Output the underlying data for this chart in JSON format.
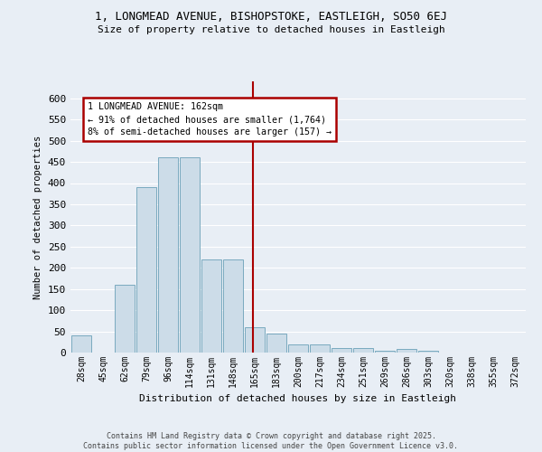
{
  "title_line1": "1, LONGMEAD AVENUE, BISHOPSTOKE, EASTLEIGH, SO50 6EJ",
  "title_line2": "Size of property relative to detached houses in Eastleigh",
  "xlabel": "Distribution of detached houses by size in Eastleigh",
  "ylabel": "Number of detached properties",
  "categories": [
    "28sqm",
    "45sqm",
    "62sqm",
    "79sqm",
    "96sqm",
    "114sqm",
    "131sqm",
    "148sqm",
    "165sqm",
    "183sqm",
    "200sqm",
    "217sqm",
    "234sqm",
    "251sqm",
    "269sqm",
    "286sqm",
    "303sqm",
    "320sqm",
    "338sqm",
    "355sqm",
    "372sqm"
  ],
  "values": [
    40,
    0,
    160,
    390,
    460,
    460,
    220,
    220,
    60,
    45,
    20,
    20,
    10,
    10,
    5,
    8,
    5,
    0,
    0,
    0,
    0
  ],
  "bar_color": "#ccdce8",
  "bar_edge_color": "#7aaabf",
  "bg_color": "#e8eef5",
  "grid_color": "#ffffff",
  "vline_color": "#aa0000",
  "annotation_text": "1 LONGMEAD AVENUE: 162sqm\n← 91% of detached houses are smaller (1,764)\n8% of semi-detached houses are larger (157) →",
  "annotation_box_edgecolor": "#aa0000",
  "footer_text": "Contains HM Land Registry data © Crown copyright and database right 2025.\nContains public sector information licensed under the Open Government Licence v3.0.",
  "ylim_max": 640,
  "yticks": [
    0,
    50,
    100,
    150,
    200,
    250,
    300,
    350,
    400,
    450,
    500,
    550,
    600
  ]
}
